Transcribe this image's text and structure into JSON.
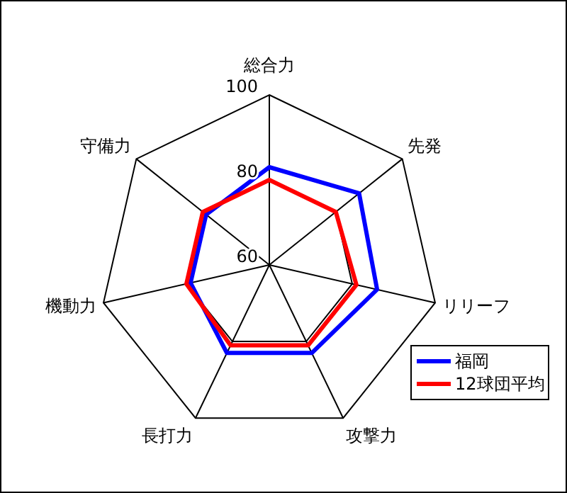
{
  "chart_data": {
    "type": "radar",
    "categories": [
      "総合力",
      "先発",
      "リリーフ",
      "攻撃力",
      "長打力",
      "機動力",
      "守備力"
    ],
    "series": [
      {
        "name": "福岡",
        "color": "#0000ff",
        "values": [
          83,
          87,
          86,
          83,
          83,
          79,
          79
        ]
      },
      {
        "name": "12球団平均",
        "color": "#ff0000",
        "values": [
          80,
          80,
          81,
          81,
          81,
          80,
          80
        ]
      }
    ],
    "ylim": [
      60,
      100
    ],
    "yticks": [
      60,
      80,
      100
    ],
    "legend": "bottom right"
  }
}
